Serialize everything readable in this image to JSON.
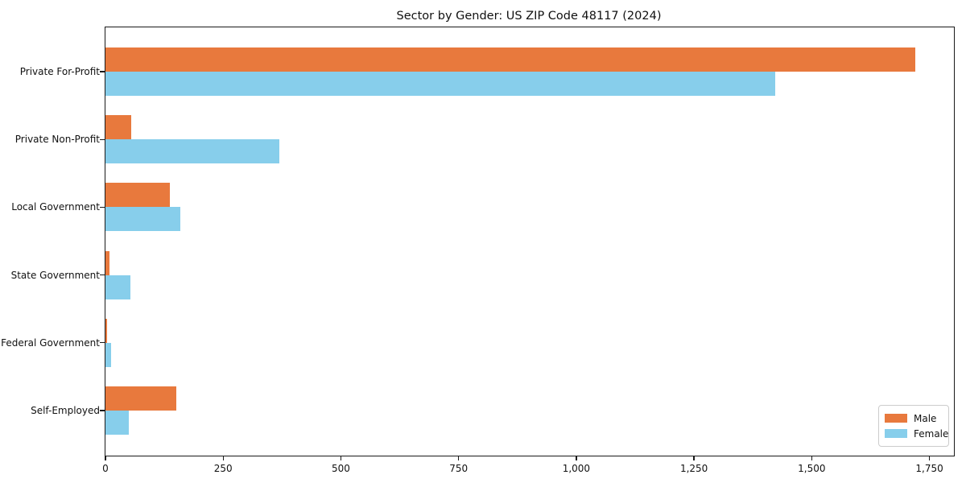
{
  "chart_data": {
    "type": "bar",
    "orientation": "horizontal",
    "title": "Sector by Gender: US ZIP Code 48117 (2024)",
    "categories": [
      "Private For-Profit",
      "Private Non-Profit",
      "Local Government",
      "State Government",
      "Federal Government",
      "Self-Employed"
    ],
    "series": [
      {
        "name": "Male",
        "color": "#E8793D",
        "values": [
          1720,
          55,
          137,
          9,
          4,
          150
        ]
      },
      {
        "name": "Female",
        "color": "#87CEEB",
        "values": [
          1423,
          369,
          159,
          53,
          12,
          50
        ]
      }
    ],
    "xlabel": "",
    "ylabel": "",
    "xlim": [
      0,
      1802
    ],
    "xticks": [
      0,
      250,
      500,
      750,
      1000,
      1250,
      1500,
      1750
    ],
    "xtick_labels": [
      "0",
      "250",
      "500",
      "750",
      "1,000",
      "1,250",
      "1,500",
      "1,750"
    ],
    "grid": false,
    "legend": {
      "position": "lower right"
    },
    "colors": {
      "male": "#E8793D",
      "female": "#87CEEB",
      "spine": "#1a1a1a",
      "background": "#ffffff"
    }
  }
}
